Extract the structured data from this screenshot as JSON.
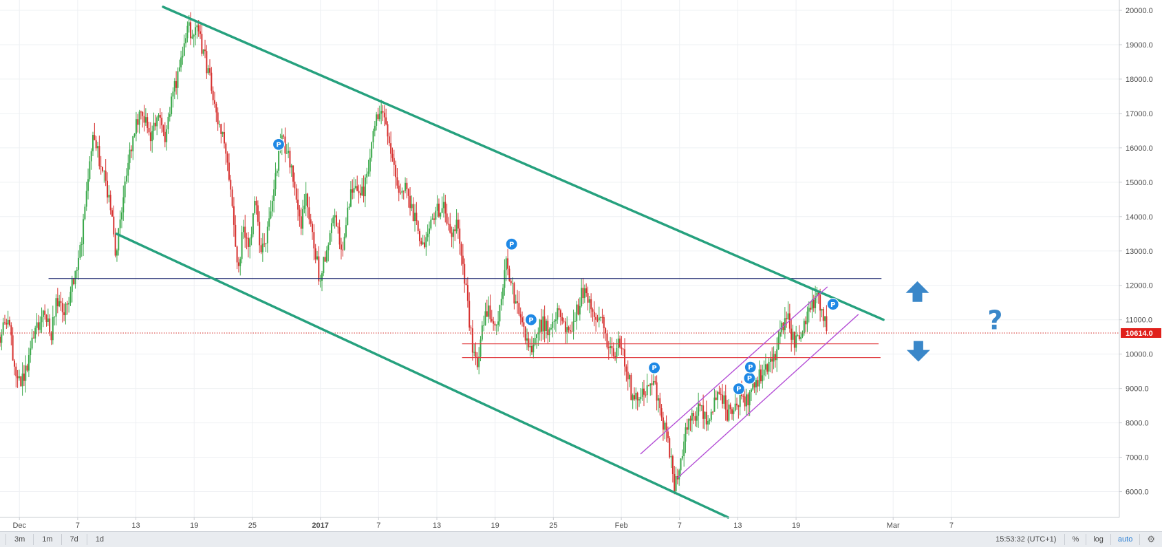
{
  "chart_data": {
    "type": "candlestick",
    "price_axis": {
      "ticks": [
        "6000.0",
        "7000.0",
        "8000.0",
        "9000.0",
        "10000.0",
        "11000.0",
        "12000.0",
        "13000.0",
        "14000.0",
        "15000.0",
        "16000.0",
        "17000.0",
        "18000.0",
        "19000.0",
        "20000.0"
      ],
      "range": [
        5250,
        20300
      ],
      "last_price_label": "10614.0",
      "last_price": 10614
    },
    "time_axis": {
      "labels": [
        {
          "text": "Dec",
          "day": 0
        },
        {
          "text": "7",
          "day": 6
        },
        {
          "text": "13",
          "day": 12
        },
        {
          "text": "19",
          "day": 18
        },
        {
          "text": "25",
          "day": 24
        },
        {
          "text": "2017",
          "day": 31,
          "bold": true
        },
        {
          "text": "7",
          "day": 37
        },
        {
          "text": "13",
          "day": 43
        },
        {
          "text": "19",
          "day": 49
        },
        {
          "text": "25",
          "day": 55
        },
        {
          "text": "Feb",
          "day": 62
        },
        {
          "text": "7",
          "day": 68
        },
        {
          "text": "13",
          "day": 74
        },
        {
          "text": "19",
          "day": 80
        },
        {
          "text": "Mar",
          "day": 90
        },
        {
          "text": "7",
          "day": 96
        }
      ],
      "range": [
        -2.0,
        113.3
      ]
    },
    "price_path": [
      [
        -2.0,
        10500
      ],
      [
        -1.2,
        11000
      ],
      [
        -0.6,
        9900
      ],
      [
        0.0,
        9100
      ],
      [
        0.8,
        9600
      ],
      [
        1.6,
        10800
      ],
      [
        2.6,
        11200
      ],
      [
        3.3,
        10600
      ],
      [
        3.8,
        11500
      ],
      [
        4.6,
        11200
      ],
      [
        5.4,
        12000
      ],
      [
        6.3,
        13000
      ],
      [
        7.0,
        14800
      ],
      [
        7.6,
        16500
      ],
      [
        8.3,
        15600
      ],
      [
        9.0,
        14800
      ],
      [
        9.5,
        13900
      ],
      [
        9.9,
        12900
      ],
      [
        10.5,
        14200
      ],
      [
        11.0,
        15000
      ],
      [
        11.7,
        16400
      ],
      [
        12.4,
        16900
      ],
      [
        13.0,
        17000
      ],
      [
        13.5,
        16300
      ],
      [
        14.4,
        16800
      ],
      [
        15.0,
        16000
      ],
      [
        15.6,
        17200
      ],
      [
        16.2,
        18000
      ],
      [
        16.8,
        18600
      ],
      [
        17.3,
        19700
      ],
      [
        17.8,
        19200
      ],
      [
        18.3,
        19400
      ],
      [
        19.0,
        18800
      ],
      [
        19.6,
        18000
      ],
      [
        20.2,
        17000
      ],
      [
        21.0,
        16200
      ],
      [
        21.8,
        14800
      ],
      [
        22.5,
        12200
      ],
      [
        23.0,
        13700
      ],
      [
        23.6,
        13200
      ],
      [
        24.3,
        14400
      ],
      [
        24.9,
        12800
      ],
      [
        25.7,
        13700
      ],
      [
        26.3,
        15200
      ],
      [
        27.0,
        16200
      ],
      [
        27.6,
        16000
      ],
      [
        28.3,
        14800
      ],
      [
        29.0,
        13700
      ],
      [
        29.6,
        14600
      ],
      [
        30.3,
        13200
      ],
      [
        31.0,
        12100
      ],
      [
        31.8,
        13400
      ],
      [
        32.6,
        13900
      ],
      [
        33.3,
        13000
      ],
      [
        34.0,
        14500
      ],
      [
        34.7,
        14900
      ],
      [
        35.4,
        14600
      ],
      [
        36.0,
        15500
      ],
      [
        36.6,
        16800
      ],
      [
        37.2,
        17000
      ],
      [
        37.9,
        16400
      ],
      [
        38.5,
        15600
      ],
      [
        39.0,
        14800
      ],
      [
        39.7,
        15000
      ],
      [
        40.3,
        14400
      ],
      [
        41.0,
        13600
      ],
      [
        41.7,
        13100
      ],
      [
        42.4,
        13800
      ],
      [
        43.0,
        14200
      ],
      [
        43.7,
        14300
      ],
      [
        44.4,
        13500
      ],
      [
        45.0,
        13800
      ],
      [
        45.6,
        12900
      ],
      [
        46.1,
        11700
      ],
      [
        46.6,
        10300
      ],
      [
        47.1,
        9500
      ],
      [
        47.7,
        10800
      ],
      [
        48.4,
        11300
      ],
      [
        49.0,
        10800
      ],
      [
        49.7,
        11600
      ],
      [
        50.2,
        12700
      ],
      [
        50.7,
        12000
      ],
      [
        51.3,
        11300
      ],
      [
        52.0,
        10500
      ],
      [
        52.7,
        10200
      ],
      [
        53.3,
        10800
      ],
      [
        54.0,
        10900
      ],
      [
        54.7,
        10600
      ],
      [
        55.4,
        11200
      ],
      [
        56.0,
        11000
      ],
      [
        56.7,
        10600
      ],
      [
        57.3,
        11100
      ],
      [
        58.0,
        11800
      ],
      [
        58.6,
        11700
      ],
      [
        59.2,
        11200
      ],
      [
        59.9,
        11000
      ],
      [
        60.5,
        10400
      ],
      [
        61.1,
        10000
      ],
      [
        61.8,
        10300
      ],
      [
        62.5,
        9700
      ],
      [
        63.2,
        8600
      ],
      [
        63.9,
        8800
      ],
      [
        64.6,
        9100
      ],
      [
        65.3,
        9300
      ],
      [
        66.0,
        8300
      ],
      [
        66.6,
        7700
      ],
      [
        67.1,
        6900
      ],
      [
        67.5,
        6100
      ],
      [
        68.0,
        6900
      ],
      [
        68.7,
        7800
      ],
      [
        69.4,
        8200
      ],
      [
        70.1,
        8400
      ],
      [
        70.8,
        8000
      ],
      [
        71.5,
        8500
      ],
      [
        72.2,
        8900
      ],
      [
        72.9,
        8300
      ],
      [
        73.6,
        8500
      ],
      [
        74.3,
        8800
      ],
      [
        75.0,
        8600
      ],
      [
        75.7,
        9200
      ],
      [
        76.4,
        9400
      ],
      [
        77.1,
        9700
      ],
      [
        77.8,
        10000
      ],
      [
        78.5,
        10700
      ],
      [
        79.2,
        11000
      ],
      [
        79.8,
        10300
      ],
      [
        80.3,
        10500
      ],
      [
        80.9,
        11000
      ],
      [
        81.6,
        11500
      ],
      [
        82.3,
        11600
      ],
      [
        82.9,
        11000
      ],
      [
        83.3,
        10600
      ]
    ],
    "trendlines": [
      {
        "name": "descending-channel-top",
        "from": [
          14.8,
          20100
        ],
        "to": [
          89.0,
          11000
        ],
        "color": "#26a17e",
        "width": 3.5
      },
      {
        "name": "descending-channel-bottom",
        "from": [
          10.0,
          13500
        ],
        "to": [
          73.0,
          5250
        ],
        "color": "#26a17e",
        "width": 3.5
      },
      {
        "name": "rising-channel-upper",
        "from": [
          64.0,
          7100
        ],
        "to": [
          83.2,
          11950
        ],
        "color": "#b44fd6",
        "width": 1.4
      },
      {
        "name": "rising-channel-lower",
        "from": [
          67.8,
          6400
        ],
        "to": [
          86.4,
          11150
        ],
        "color": "#b44fd6",
        "width": 1.4
      }
    ],
    "horizontal_levels": [
      {
        "name": "resistance-line",
        "price": 12200,
        "from_day": 3.0,
        "to_day": 88.8,
        "color": "#1f2a70",
        "width": 1.2
      },
      {
        "name": "support-line-upper",
        "price": 10300,
        "from_day": 45.6,
        "to_day": 88.5,
        "color": "#e0393e",
        "width": 1.2
      },
      {
        "name": "support-line-lower",
        "price": 9900,
        "from_day": 45.6,
        "to_day": 88.7,
        "color": "#e0393e",
        "width": 1.2
      }
    ],
    "markers": [
      {
        "label": "P",
        "day": 26.7,
        "price": 16100
      },
      {
        "label": "P",
        "day": 50.7,
        "price": 13200
      },
      {
        "label": "P",
        "day": 52.7,
        "price": 11000
      },
      {
        "label": "P",
        "day": 65.4,
        "price": 9600
      },
      {
        "label": "P",
        "day": 74.1,
        "price": 8990
      },
      {
        "label": "P",
        "day": 75.2,
        "price": 9300
      },
      {
        "label": "P",
        "day": 75.3,
        "price": 9620
      },
      {
        "label": "P",
        "day": 83.8,
        "price": 11450
      }
    ],
    "annotations": [
      {
        "name": "up-arrow-icon",
        "day": 92.5,
        "price": 11800,
        "color": "#3a87c9"
      },
      {
        "name": "down-arrow-icon",
        "day": 92.6,
        "price": 10100,
        "color": "#3a87c9"
      },
      {
        "name": "question-mark-icon",
        "text": "?",
        "day": 100.5,
        "price": 11000,
        "color": "#3a87c9"
      }
    ],
    "colors": {
      "up": "#3aa84a",
      "down": "#d6302e",
      "grid": "#eef0f3",
      "badge": "#1e88e5",
      "price_label_bg": "#e0201b",
      "axis": "#c9ccd1"
    }
  },
  "toolbar": {
    "timeframes": [
      "3m",
      "1m",
      "7d",
      "1d"
    ],
    "clock": "15:53:32 (UTC+1)",
    "percent_label": "%",
    "log_label": "log",
    "auto_label": "auto"
  }
}
